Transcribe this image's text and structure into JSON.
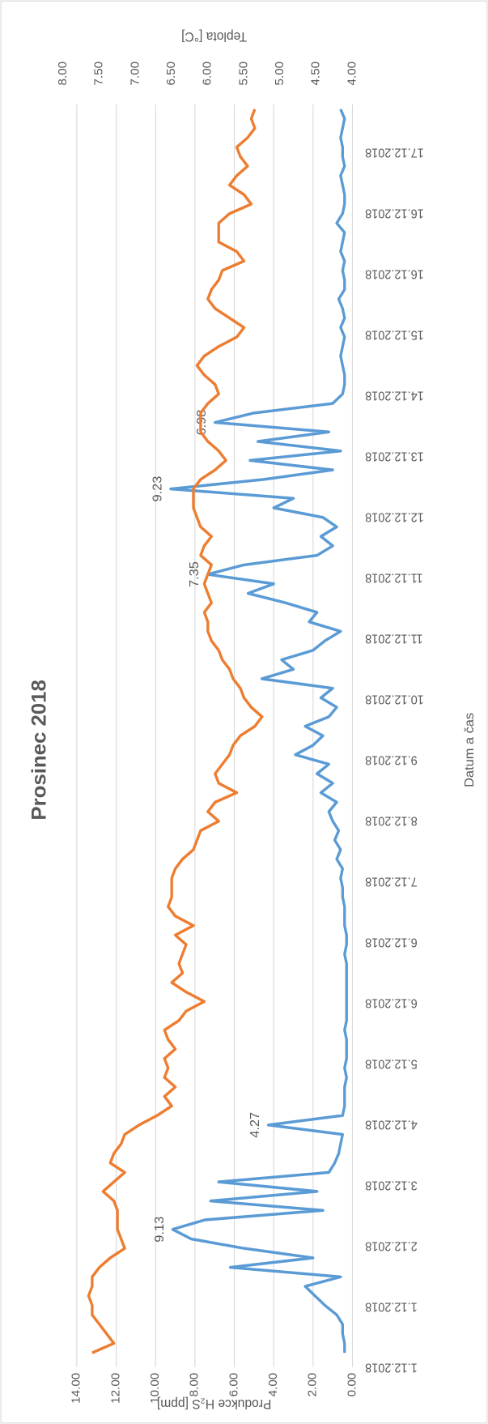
{
  "chart_data": {
    "type": "line",
    "title": "Prosinec 2018",
    "x_label": "Datum a čas",
    "y_label": "Produkce H₂S [ppm]",
    "y2_label": "Teplota [°C]",
    "x_tick_labels": [
      "1.12.2018",
      "1.12.2018",
      "2.12.2018",
      "3.12.2018",
      "4.12.2018",
      "5.12.2018",
      "6.12.2018",
      "6.12.2018",
      "7.12.2018",
      "8.12.2018",
      "9.12.2018",
      "10.12.2018",
      "11.12.2018",
      "11.12.2018",
      "12.12.2018",
      "13.12.2018",
      "14.12.2018",
      "15.12.2018",
      "16.12.2018",
      "16.12.2018",
      "17.12.2018"
    ],
    "ylim": [
      0,
      14
    ],
    "yticks": [
      {
        "value": 0,
        "label": "0.00"
      },
      {
        "value": 2,
        "label": "2.00"
      },
      {
        "value": 4,
        "label": "4.00"
      },
      {
        "value": 6,
        "label": "6.00"
      },
      {
        "value": 8,
        "label": "8.00"
      },
      {
        "value": 10,
        "label": "10.00"
      },
      {
        "value": 12,
        "label": "12.00"
      },
      {
        "value": 14,
        "label": "14.00"
      }
    ],
    "y2lim": [
      4,
      8
    ],
    "y2ticks": [
      {
        "value": 4,
        "label": "4.00"
      },
      {
        "value": 4.5,
        "label": "4.50"
      },
      {
        "value": 5,
        "label": "5.00"
      },
      {
        "value": 5.5,
        "label": "5.50"
      },
      {
        "value": 6,
        "label": "6.00"
      },
      {
        "value": 6.5,
        "label": "6.50"
      },
      {
        "value": 7,
        "label": "7.00"
      },
      {
        "value": 7.5,
        "label": "7.50"
      },
      {
        "value": 8,
        "label": "8.00"
      }
    ],
    "grid": true,
    "series": [
      {
        "color": "#5b9bd5",
        "values": [
          0.4,
          0.4,
          0.5,
          0.5,
          0.8,
          1.4,
          1.9,
          2.4,
          0.6,
          6.2,
          2.0,
          5.5,
          8.2,
          9.13,
          7.5,
          1.5,
          7.2,
          1.8,
          6.8,
          1.2,
          0.9,
          0.7,
          0.6,
          0.5,
          4.27,
          0.5,
          0.4,
          0.4,
          0.4,
          0.3,
          0.4,
          0.3,
          0.3,
          0.3,
          0.4,
          0.3,
          0.3,
          0.3,
          0.3,
          0.3,
          0.3,
          0.3,
          0.4,
          0.3,
          0.3,
          0.4,
          0.4,
          0.4,
          0.5,
          0.5,
          0.6,
          0.5,
          0.8,
          0.6,
          0.9,
          0.7,
          1.0,
          1.2,
          0.8,
          1.6,
          1.0,
          1.8,
          1.2,
          2.9,
          2.0,
          1.5,
          2.4,
          1.2,
          0.8,
          1.6,
          1.0,
          4.6,
          3.0,
          3.6,
          2.0,
          1.4,
          0.6,
          2.2,
          1.8,
          3.4,
          5.3,
          4.0,
          7.35,
          5.5,
          1.8,
          1.0,
          1.6,
          0.8,
          1.5,
          4.0,
          3.0,
          9.23,
          4.5,
          1.0,
          5.2,
          0.6,
          4.8,
          1.2,
          6.98,
          5.0,
          1.0,
          0.5,
          0.4,
          0.4,
          0.5,
          0.6,
          0.5,
          0.4,
          0.6,
          0.4,
          0.5,
          0.7,
          0.4,
          0.4,
          0.5,
          0.4,
          0.6,
          0.5,
          0.4,
          0.8,
          0.5,
          0.4,
          0.4,
          0.5,
          0.6,
          0.4,
          0.5,
          0.5,
          0.6,
          0.5,
          0.4,
          0.6
        ],
        "value_labels": [
          null,
          null,
          null,
          null,
          null,
          null,
          null,
          null,
          null,
          null,
          null,
          null,
          null,
          "9.13",
          null,
          null,
          null,
          null,
          null,
          null,
          null,
          null,
          null,
          null,
          "4.27",
          null,
          null,
          null,
          null,
          null,
          null,
          null,
          null,
          null,
          null,
          null,
          null,
          null,
          null,
          null,
          null,
          null,
          null,
          null,
          null,
          null,
          null,
          null,
          null,
          null,
          null,
          null,
          null,
          null,
          null,
          null,
          null,
          null,
          null,
          null,
          null,
          null,
          null,
          null,
          null,
          null,
          null,
          null,
          null,
          null,
          null,
          null,
          null,
          null,
          null,
          null,
          null,
          null,
          null,
          null,
          null,
          null,
          "7.35",
          null,
          null,
          null,
          null,
          null,
          null,
          null,
          null,
          "9.23",
          null,
          null,
          null,
          null,
          null,
          null,
          "6.98",
          null,
          null,
          null,
          null,
          null,
          null,
          null,
          null,
          null,
          null,
          null,
          null,
          null,
          null,
          null,
          null,
          null,
          null,
          null,
          null,
          null,
          null,
          null,
          null,
          null,
          null,
          null,
          null,
          null,
          null,
          null,
          null,
          null
        ]
      },
      {
        "color": "#ed7d31",
        "axis": "y2",
        "values": [
          7.6,
          7.3,
          7.4,
          7.5,
          7.6,
          7.6,
          7.65,
          7.6,
          7.6,
          7.5,
          7.35,
          7.15,
          7.2,
          7.25,
          7.25,
          7.25,
          7.3,
          7.45,
          7.3,
          7.15,
          7.35,
          7.3,
          7.2,
          7.15,
          6.95,
          6.7,
          6.5,
          6.6,
          6.45,
          6.6,
          6.55,
          6.6,
          6.45,
          6.55,
          6.6,
          6.4,
          6.3,
          6.05,
          6.3,
          6.5,
          6.35,
          6.4,
          6.35,
          6.3,
          6.45,
          6.2,
          6.45,
          6.55,
          6.5,
          6.5,
          6.5,
          6.45,
          6.35,
          6.2,
          6.15,
          6.1,
          5.85,
          6.0,
          5.9,
          5.6,
          5.85,
          5.9,
          5.8,
          5.7,
          5.65,
          5.55,
          5.35,
          5.25,
          5.4,
          5.5,
          5.55,
          5.65,
          5.7,
          5.8,
          5.85,
          5.95,
          6.0,
          6.0,
          6.05,
          5.95,
          6.0,
          6.05,
          6.0,
          5.95,
          6.1,
          6.05,
          5.95,
          6.1,
          6.15,
          6.2,
          6.2,
          6.2,
          6.1,
          5.9,
          5.75,
          5.85,
          6.0,
          6.1,
          6.1,
          6.1,
          6.0,
          5.85,
          5.9,
          6.05,
          6.15,
          6.05,
          5.85,
          5.6,
          5.5,
          5.7,
          5.9,
          6.0,
          5.95,
          5.85,
          5.8,
          5.5,
          5.6,
          5.85,
          5.85,
          5.85,
          5.7,
          5.4,
          5.5,
          5.7,
          5.6,
          5.45,
          5.55,
          5.6,
          5.45,
          5.35,
          5.4,
          5.35
        ]
      }
    ]
  }
}
